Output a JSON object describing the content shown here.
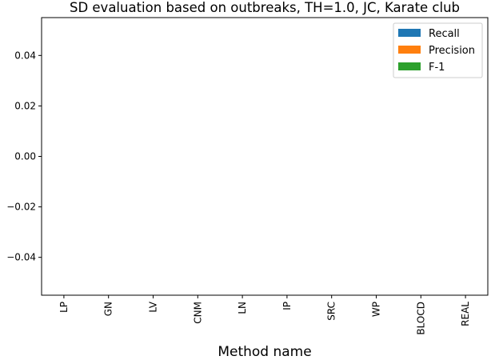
{
  "chart_data": {
    "type": "bar",
    "title": "SD evaluation based on outbreaks, TH=1.0, JC, Karate club",
    "xlabel": "Method name",
    "ylabel": "",
    "categories": [
      "LP",
      "GN",
      "LV",
      "CNM",
      "LN",
      "IP",
      "SRC",
      "WP",
      "BLOCD",
      "REAL"
    ],
    "series": [
      {
        "name": "Recall",
        "color": "#1f77b4",
        "values": [
          0,
          0,
          0,
          0,
          0,
          0,
          0,
          0,
          0,
          0
        ]
      },
      {
        "name": "Precision",
        "color": "#ff7f0e",
        "values": [
          0,
          0,
          0,
          0,
          0,
          0,
          0,
          0,
          0,
          0
        ]
      },
      {
        "name": "F-1",
        "color": "#2ca02c",
        "values": [
          0,
          0,
          0,
          0,
          0,
          0,
          0,
          0,
          0,
          0
        ]
      }
    ],
    "ylim": [
      -0.055,
      0.055
    ],
    "yticks": [
      "0.04",
      "0.02",
      "0.00",
      "−0.02",
      "−0.04"
    ],
    "ytick_values": [
      0.04,
      0.02,
      0.0,
      -0.02,
      -0.04
    ],
    "grid": false,
    "legend_position": "top-right"
  }
}
